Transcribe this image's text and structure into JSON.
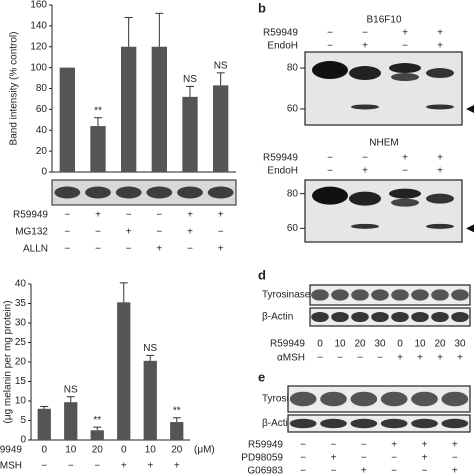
{
  "chart_data": [
    {
      "type": "bar",
      "y_label": "Band intensity (% control)",
      "categories": [
        null,
        null,
        null,
        null,
        null,
        null
      ],
      "values": [
        100,
        44,
        120,
        120,
        72,
        83
      ],
      "errors": [
        null,
        8,
        28,
        32,
        10,
        12
      ],
      "value_annotations": [
        null,
        "**",
        null,
        null,
        "NS",
        "NS"
      ],
      "color": "#555555",
      "ylim": [
        0,
        160
      ],
      "yticks": [
        0,
        20,
        40,
        60,
        80,
        100,
        120,
        140,
        160
      ],
      "conditions": [
        {
          "name": "R59949",
          "signs": [
            "−",
            "+",
            "−",
            "−",
            "+",
            "+"
          ]
        },
        {
          "name": "MG132",
          "signs": [
            "−",
            "−",
            "+",
            "−",
            "+",
            "−"
          ]
        },
        {
          "name": "ALLN",
          "signs": [
            "−",
            "−",
            "−",
            "+",
            "−",
            "+"
          ]
        }
      ]
    },
    {
      "type": "bar",
      "y_label": "(μg melanin per mg protein)",
      "category_row_name": "9949",
      "unit_label": "(μM)",
      "categories": [
        "0",
        "10",
        "20",
        "0",
        "10",
        "20"
      ],
      "values": [
        8,
        9.7,
        2.5,
        35.3,
        20.3,
        4.6
      ],
      "errors": [
        0.6,
        1.4,
        0.8,
        5,
        1.4,
        1.1
      ],
      "value_annotations": [
        null,
        "NS",
        "**",
        null,
        "NS",
        "**"
      ],
      "color": "#555555",
      "ylim": [
        0,
        40
      ],
      "yticks": [
        0,
        5,
        10,
        15,
        20,
        25,
        30,
        35,
        40
      ],
      "conditions": [
        {
          "name": "MSH",
          "signs": [
            "−",
            "−",
            "−",
            "+",
            "+",
            "+"
          ]
        }
      ]
    }
  ],
  "panels": {
    "b": {
      "label": "b",
      "blots": [
        {
          "title": "B16F10",
          "markers": [
            "80",
            "60"
          ],
          "conditions": [
            {
              "name": "R59949",
              "signs": [
                "−",
                "−",
                "+",
                "+"
              ]
            },
            {
              "name": "EndoH",
              "signs": [
                "−",
                "+",
                "−",
                "+"
              ]
            }
          ]
        },
        {
          "title": "NHEM",
          "markers": [
            "80",
            "60"
          ],
          "conditions": [
            {
              "name": "R59949",
              "signs": [
                "−",
                "−",
                "+",
                "+"
              ]
            },
            {
              "name": "EndoH",
              "signs": [
                "−",
                "+",
                "−",
                "+"
              ]
            }
          ]
        }
      ]
    },
    "d": {
      "label": "d",
      "rows": [
        "Tyrosinase",
        "β-Actin"
      ],
      "conditions": [
        {
          "name": "R59949",
          "signs": [
            "0",
            "10",
            "20",
            "30",
            "0",
            "10",
            "20",
            "30"
          ]
        },
        {
          "name": "αMSH",
          "signs": [
            "−",
            "−",
            "−",
            "−",
            "+",
            "+",
            "+",
            "+"
          ]
        }
      ]
    },
    "e": {
      "label": "e",
      "rows": [
        "Tyrosinase",
        "β-Actin"
      ],
      "conditions": [
        {
          "name": "R59949",
          "signs": [
            "−",
            "−",
            "−",
            "+",
            "+",
            "+"
          ]
        },
        {
          "name": "PD98059",
          "signs": [
            "−",
            "+",
            "−",
            "−",
            "+",
            "−"
          ]
        },
        {
          "name": "G06983",
          "signs": [
            "−",
            "−",
            "+",
            "−",
            "−",
            "+"
          ]
        }
      ]
    }
  }
}
